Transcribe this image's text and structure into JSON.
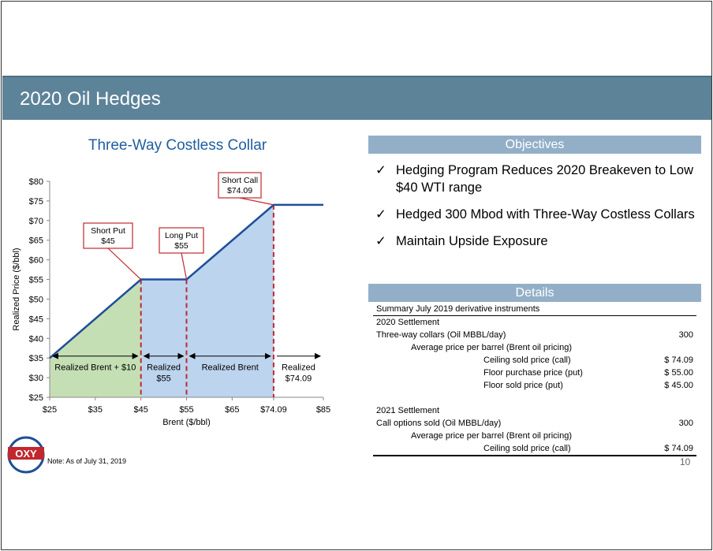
{
  "page_title": "2020 Oil Hedges",
  "chart_data": {
    "type": "line",
    "title": "Three-Way Costless Collar",
    "xlabel": "Brent ($/bbl)",
    "ylabel": "Realized Price ($/bbl)",
    "x_ticks": [
      {
        "value": 25,
        "label": "$25"
      },
      {
        "value": 35,
        "label": "$35"
      },
      {
        "value": 45,
        "label": "$45"
      },
      {
        "value": 55,
        "label": "$55"
      },
      {
        "value": 65,
        "label": "$65"
      },
      {
        "value": 74.09,
        "label": "$74.09"
      },
      {
        "value": 85,
        "label": "$85"
      }
    ],
    "y_ticks": [
      {
        "value": 25,
        "label": "$25"
      },
      {
        "value": 30,
        "label": "$30"
      },
      {
        "value": 35,
        "label": "$35"
      },
      {
        "value": 40,
        "label": "$40"
      },
      {
        "value": 45,
        "label": "$45"
      },
      {
        "value": 50,
        "label": "$50"
      },
      {
        "value": 55,
        "label": "$55"
      },
      {
        "value": 60,
        "label": "$60"
      },
      {
        "value": 65,
        "label": "$65"
      },
      {
        "value": 70,
        "label": "$70"
      },
      {
        "value": 75,
        "label": "$75"
      },
      {
        "value": 80,
        "label": "$80"
      }
    ],
    "xlim": [
      25,
      85
    ],
    "ylim": [
      25,
      80
    ],
    "series": [
      {
        "points": [
          [
            25,
            35
          ],
          [
            45,
            55
          ],
          [
            55,
            55
          ],
          [
            74.09,
            74
          ],
          [
            85,
            74
          ]
        ]
      }
    ],
    "strikes": [
      45,
      55,
      74.09
    ],
    "callouts": [
      {
        "lines": [
          "Short Put",
          "$45"
        ],
        "anchor": [
          45,
          55
        ]
      },
      {
        "lines": [
          "Long Put",
          "$55"
        ],
        "anchor": [
          55,
          55
        ]
      },
      {
        "lines": [
          "Short Call",
          "$74.09"
        ],
        "anchor": [
          74.09,
          74
        ]
      }
    ],
    "region_labels": [
      {
        "lines": [
          "Realized Brent + $10"
        ],
        "from": 25,
        "to": 45
      },
      {
        "lines": [
          "Realized",
          "$55"
        ],
        "from": 45,
        "to": 55
      },
      {
        "lines": [
          "Realized Brent"
        ],
        "from": 55,
        "to": 74.09
      },
      {
        "lines": [
          "Realized",
          "$74.09"
        ],
        "from": 74.09,
        "to": 85
      }
    ],
    "colors": {
      "line": "#1f4e9a",
      "green_fill": "#c5dfb4",
      "blue_fill": "#bcd4ee",
      "strike_line": "#c0282e",
      "callout_border": "#c0282e"
    }
  },
  "objectives": {
    "header": "Objectives",
    "check": "✓",
    "items": [
      "Hedging Program Reduces 2020 Breakeven to Low $40 WTI range",
      "Hedged 300 Mbod with Three-Way Costless Collars",
      "Maintain Upside Exposure"
    ]
  },
  "details": {
    "header": "Details",
    "caption": "Summary July 2019 derivative instruments",
    "s2020": {
      "title": "2020 Settlement",
      "collars_label": "Three-way collars (Oil MBBL/day)",
      "collars_value": "300",
      "avg_label": "Average price per barrel (Brent oil pricing)",
      "ceiling_label": "Ceiling sold price (call)",
      "ceiling_value": "$ 74.09",
      "floor_purchase_label": "Floor purchase price (put)",
      "floor_purchase_value": "$ 55.00",
      "floor_sold_label": "Floor sold price (put)",
      "floor_sold_value": "$ 45.00"
    },
    "s2021": {
      "title": "2021 Settlement",
      "calls_label": "Call options sold (Oil MBBL/day)",
      "calls_value": "300",
      "avg_label": "Average price per barrel (Brent oil pricing)",
      "ceiling_label": "Ceiling sold price (call)",
      "ceiling_value": "$ 74.09"
    }
  },
  "note": "Note: As of July 31, 2019",
  "page_number": "10",
  "logo_text": "OXY"
}
